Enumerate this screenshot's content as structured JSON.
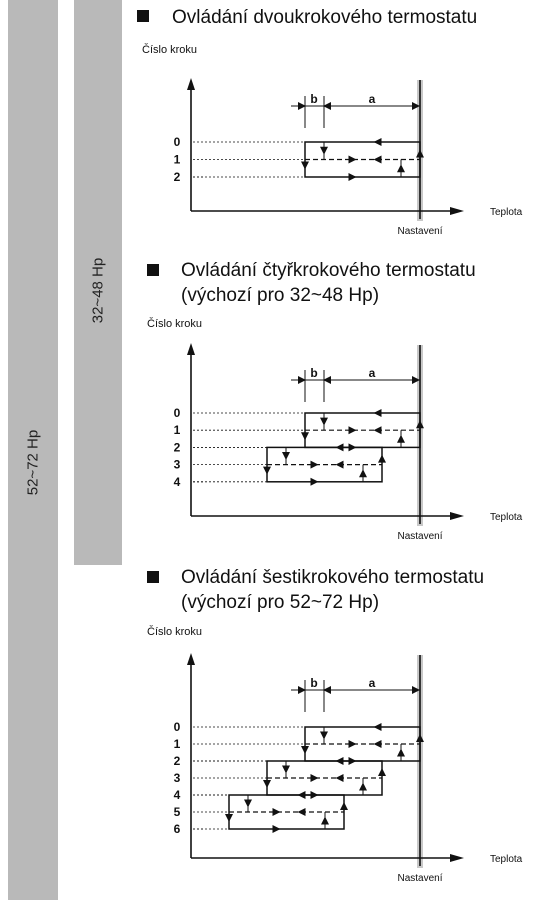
{
  "side": {
    "outer_label": "52~72 Hp",
    "inner_label": "32~48 Hp"
  },
  "sections": [
    {
      "heading1": "Ovládání dvoukrokového termostatu",
      "heading2": "",
      "y_axis_label": "Číslo kroku",
      "x_axis_label": "Teplota",
      "setpoint_label": "Nastavení",
      "gap_b": "b",
      "gap_a": "a",
      "steps": [
        "0",
        "1",
        "2"
      ]
    },
    {
      "heading1": "Ovládání čtyřkrokového termostatu",
      "heading2": "(výchozí pro 32~48 Hp)",
      "y_axis_label": "Číslo kroku",
      "x_axis_label": "Teplota",
      "setpoint_label": "Nastavení",
      "gap_b": "b",
      "gap_a": "a",
      "steps": [
        "0",
        "1",
        "2",
        "3",
        "4"
      ]
    },
    {
      "heading1": "Ovládání šestikrokového termostatu",
      "heading2": "(výchozí pro 52~72 Hp)",
      "y_axis_label": "Číslo kroku",
      "x_axis_label": "Teplota",
      "setpoint_label": "Nastavení",
      "gap_b": "b",
      "gap_a": "a",
      "steps": [
        "0",
        "1",
        "2",
        "3",
        "4",
        "5",
        "6"
      ]
    }
  ]
}
